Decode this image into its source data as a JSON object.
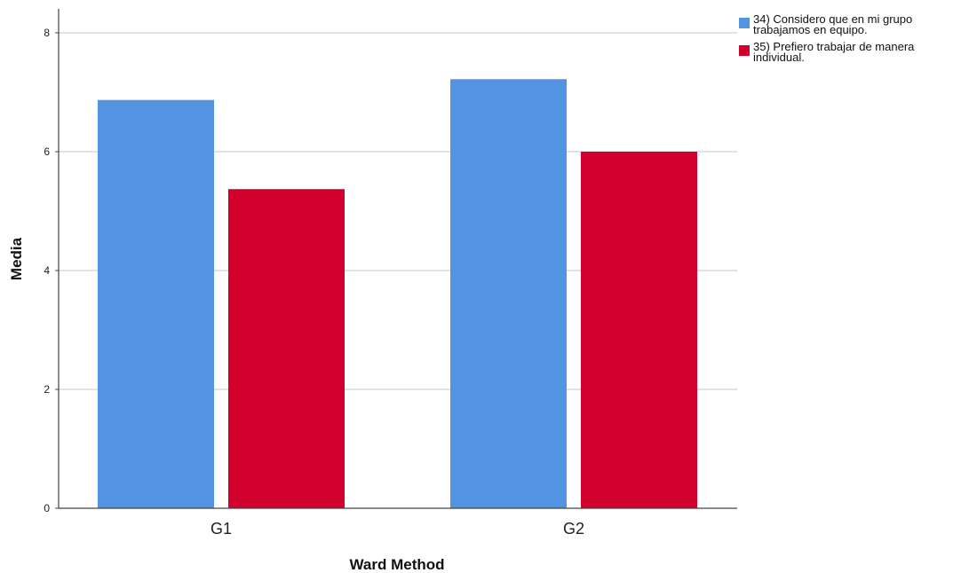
{
  "chart_data": {
    "type": "bar",
    "title": "",
    "xlabel": "Ward Method",
    "ylabel": "Media",
    "categories": [
      "G1",
      "G2"
    ],
    "series": [
      {
        "name": "34) Considero que en mi grupo\ntrabajamos en equipo.",
        "color": "#5294e2",
        "values": [
          6.87,
          7.22
        ]
      },
      {
        "name": "35) Prefiero trabajar de manera\nindividual.",
        "color": "#d1002c",
        "values": [
          5.37,
          6.0
        ]
      }
    ],
    "ylim": [
      0,
      8
    ],
    "yticks": [
      0,
      2,
      4,
      6,
      8
    ],
    "grid": true,
    "legend_position": "top-right"
  }
}
